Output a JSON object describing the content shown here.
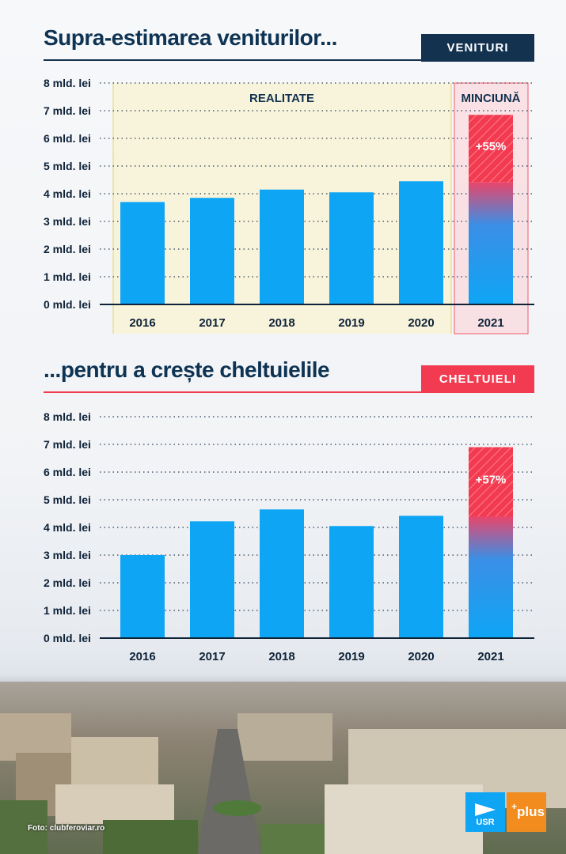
{
  "photo_credit": "Foto: clubferoviar.ro",
  "logos": {
    "usr": "USR",
    "plus": "plus",
    "plus_mark": "+"
  },
  "chart_data": [
    {
      "type": "bar",
      "title": "Supra-estimarea veniturilor...",
      "tag": "VENITURI",
      "categories": [
        "2016",
        "2017",
        "2018",
        "2019",
        "2020",
        "2021"
      ],
      "values": [
        3.7,
        3.85,
        4.15,
        4.05,
        4.45,
        6.85
      ],
      "base_2021": 4.42,
      "increase_label": "+55%",
      "y_ticks": [
        "0 mld. lei",
        "1 mld. lei",
        "2 mld. lei",
        "3 mld. lei",
        "4 mld. lei",
        "5 mld. lei",
        "6 mld. lei",
        "7 mld. lei",
        "8 mld. lei"
      ],
      "ylim": [
        0,
        8
      ],
      "grid": true,
      "region_real": "REALITATE",
      "region_lie": "MINCIUNĂ",
      "colors": {
        "bar": "#0ea5f5",
        "increase": "#f23b50",
        "accent": "#12324f",
        "real_band": "#f8f3d6",
        "lie_band": "#f9d9dd"
      }
    },
    {
      "type": "bar",
      "title": "...pentru a crește cheltuielile",
      "tag": "CHELTUIELI",
      "categories": [
        "2016",
        "2017",
        "2018",
        "2019",
        "2020",
        "2021"
      ],
      "values": [
        3.0,
        4.22,
        4.65,
        4.05,
        4.42,
        6.9
      ],
      "base_2021": 4.4,
      "increase_label": "+57%",
      "y_ticks": [
        "0 mld. lei",
        "1 mld. lei",
        "2 mld. lei",
        "3 mld. lei",
        "4 mld. lei",
        "5 mld. lei",
        "6 mld. lei",
        "7 mld. lei",
        "8 mld. lei"
      ],
      "ylim": [
        0,
        8
      ],
      "grid": true,
      "colors": {
        "bar": "#0ea5f5",
        "increase": "#f23b50",
        "accent": "#f23b50"
      }
    }
  ]
}
